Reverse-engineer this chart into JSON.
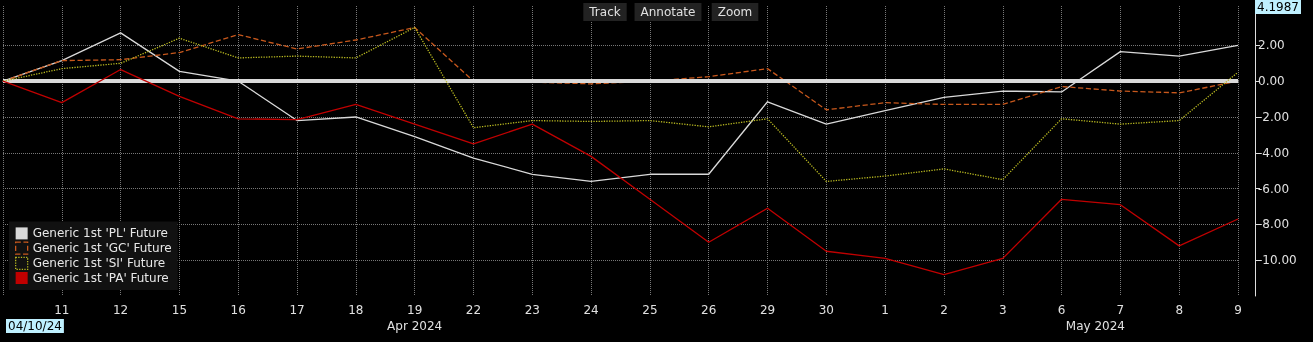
{
  "chart_data": {
    "type": "line",
    "categories": [
      null,
      "11",
      "12",
      "15",
      "16",
      "17",
      "18",
      "19",
      "22",
      "23",
      "24",
      "25",
      "26",
      "29",
      "30",
      "1",
      "2",
      "3",
      "6",
      "7",
      "8",
      "9"
    ],
    "series": [
      {
        "name": "Generic 1st 'PL' Future",
        "color": "#d9d9d9",
        "line_style": "solid",
        "values": [
          0,
          1.15,
          2.7,
          0.55,
          0,
          -2.2,
          -2.0,
          -3.1,
          -4.3,
          -5.2,
          -5.6,
          -5.2,
          -5.2,
          -1.15,
          -2.4,
          -1.65,
          -0.9,
          -0.55,
          -0.6,
          1.65,
          1.4,
          2.0
        ]
      },
      {
        "name": "Generic 1st 'GC' Future",
        "color": "#c8581c",
        "line_style": "dashed",
        "values": [
          0,
          1.15,
          1.2,
          1.6,
          2.6,
          1.8,
          2.3,
          3.0,
          0,
          -0.05,
          -0.15,
          0,
          0.25,
          0.7,
          -1.6,
          -1.2,
          -1.3,
          -1.3,
          -0.3,
          -0.55,
          -0.65,
          0
        ]
      },
      {
        "name": "Generic 1st 'SI' Future",
        "color": "#b8b820",
        "line_style": "dotted",
        "values": [
          0,
          0.7,
          1.0,
          2.4,
          1.3,
          1.4,
          1.3,
          3.0,
          -2.6,
          -2.2,
          -2.25,
          -2.2,
          -2.55,
          -2.1,
          -5.6,
          -5.3,
          -4.9,
          -5.5,
          -2.1,
          -2.4,
          -2.2,
          0.5
        ]
      },
      {
        "name": "Generic 1st 'PA' Future",
        "color": "#c00000",
        "line_style": "solid",
        "values": [
          0,
          -1.2,
          0.65,
          -0.85,
          -2.1,
          -2.15,
          -1.3,
          -2.4,
          -3.5,
          -2.4,
          -4.2,
          -6.6,
          -9.0,
          -7.1,
          -9.5,
          -9.9,
          -10.8,
          -9.9,
          -6.6,
          -6.9,
          -9.2,
          -7.7
        ]
      }
    ],
    "ylim": [
      -12,
      4.2
    ],
    "yticks": [
      {
        "value": 2,
        "label": "2.00"
      },
      {
        "value": 0,
        "label": "0.00"
      },
      {
        "value": -2,
        "label": "-2.00"
      },
      {
        "value": -4,
        "label": "-4.00"
      },
      {
        "value": -6,
        "label": "-6.00"
      },
      {
        "value": -8,
        "label": "-8.00"
      },
      {
        "value": -10,
        "label": "-10.00"
      }
    ],
    "ref_lines": [
      {
        "axis": "y",
        "value": 0,
        "color": "#d9d9d9"
      }
    ],
    "annotations": [
      "Track",
      "Annotate",
      "Zoom",
      "04/10/24",
      "Apr 2024",
      "May 2024",
      "4.1987"
    ],
    "grid": true,
    "legend": "bottom left",
    "marker": "none"
  }
}
